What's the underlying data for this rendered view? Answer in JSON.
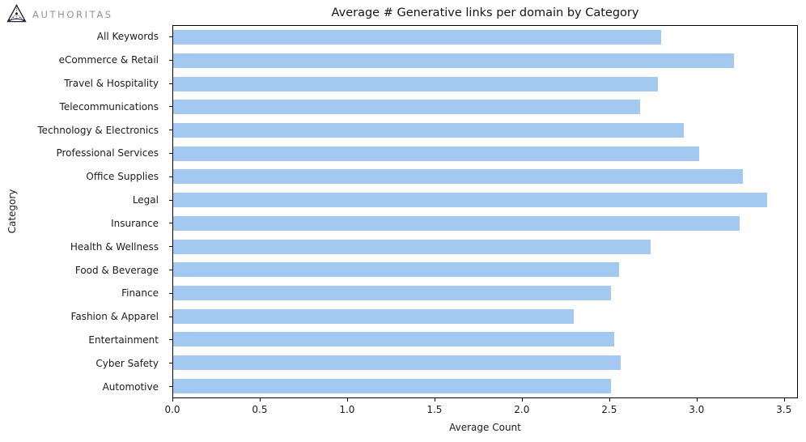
{
  "header": {
    "brand": "AUTHORITAS"
  },
  "chart_data": {
    "type": "bar",
    "orientation": "horizontal",
    "title": "Average # Generative links per domain by Category",
    "xlabel": "Average Count",
    "ylabel": "Category",
    "xlim": [
      0,
      3.58
    ],
    "grid": false,
    "legend": false,
    "bar_color": "#a3c9f0",
    "xticks": [
      {
        "label": "0.0",
        "value": 0.0
      },
      {
        "label": "0.5",
        "value": 0.5
      },
      {
        "label": "1.0",
        "value": 1.0
      },
      {
        "label": "1.5",
        "value": 1.5
      },
      {
        "label": "2.0",
        "value": 2.0
      },
      {
        "label": "2.5",
        "value": 2.5
      },
      {
        "label": "3.0",
        "value": 3.0
      },
      {
        "label": "3.5",
        "value": 3.5
      }
    ],
    "categories": [
      "All Keywords",
      "eCommerce & Retail",
      "Travel & Hospitality",
      "Telecommunications",
      "Technology & Electronics",
      "Professional Services",
      "Office Supplies",
      "Legal",
      "Insurance",
      "Health & Wellness",
      "Food & Beverage",
      "Finance",
      "Fashion & Apparel",
      "Entertainment",
      "Cyber Safety",
      "Automotive"
    ],
    "values": [
      2.8,
      3.22,
      2.78,
      2.68,
      2.93,
      3.02,
      3.27,
      3.41,
      3.25,
      2.74,
      2.56,
      2.51,
      2.3,
      2.53,
      2.57,
      2.51
    ]
  }
}
